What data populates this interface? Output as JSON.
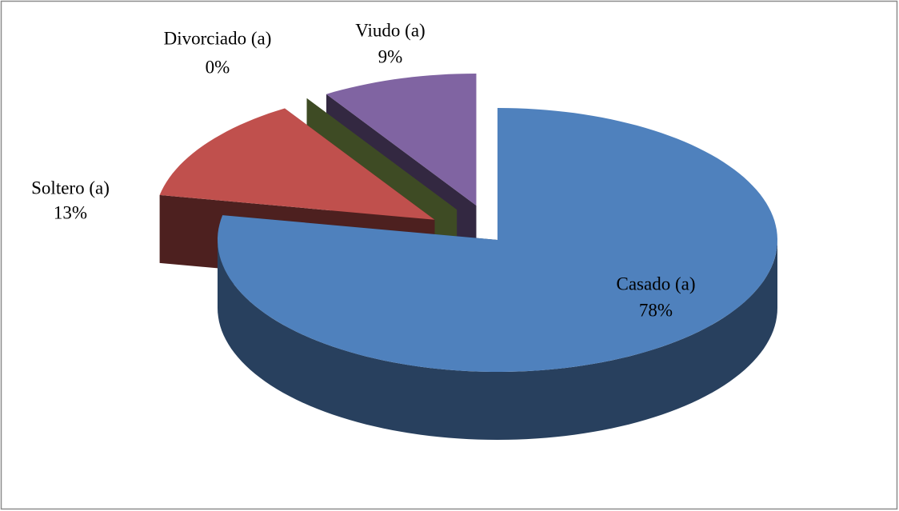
{
  "chart_data": {
    "type": "pie",
    "categories": [
      "Casado (a)",
      "Soltero (a)",
      "Divorciado (a)",
      "Viudo (a)"
    ],
    "values": [
      78,
      13,
      0,
      9
    ],
    "value_labels": [
      "78%",
      "13%",
      "0%",
      "9%"
    ],
    "colors": [
      "#4f81bd",
      "#c0504d",
      "#9bbb59",
      "#8064a2"
    ]
  }
}
